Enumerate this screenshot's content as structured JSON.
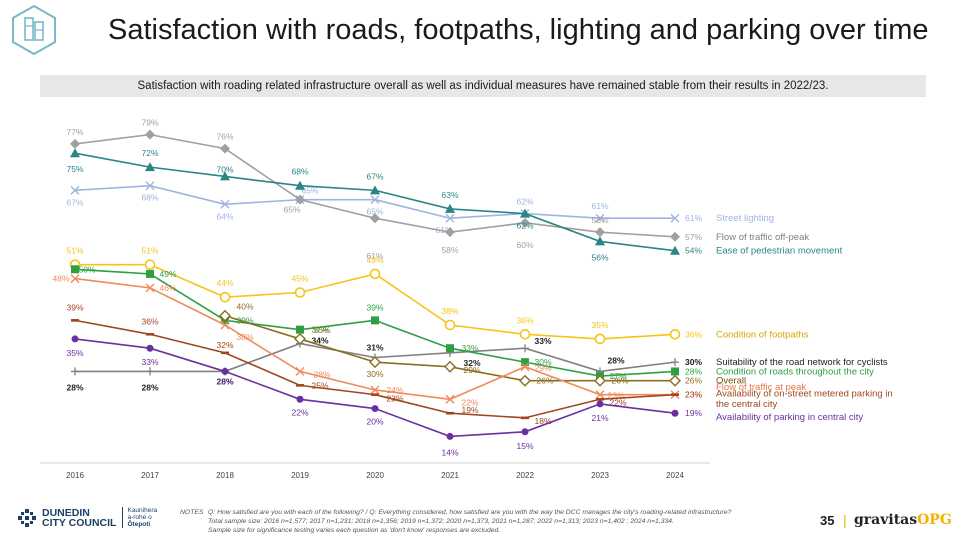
{
  "title": "Satisfaction with roads, footpaths, lighting and parking over time",
  "banner": "Satisfaction with roading related infrastructure overall as well as individual measures have remained stable from their results in 2022/23.",
  "chart_data": {
    "type": "line",
    "x": [
      "2016",
      "2017",
      "2018",
      "2019",
      "2020",
      "2021",
      "2022",
      "2023",
      "2024"
    ],
    "series": [
      {
        "name": "Street lighting",
        "color": "#9fb4e0",
        "marker": "x",
        "values": [
          67,
          68,
          64,
          65,
          65,
          61,
          62,
          61,
          61
        ],
        "labels": [
          "67%",
          "68%",
          "64%",
          "65%",
          "65%",
          "61%",
          "62%",
          "61%",
          "61%"
        ]
      },
      {
        "name": "Flow of traffic off-peak",
        "color": "#a0a0a0",
        "marker": "diamond",
        "values": [
          77,
          79,
          76,
          65,
          61,
          58,
          60,
          58,
          57
        ],
        "labels": [
          "77%",
          "79%",
          "76%",
          "65%",
          "61%",
          "58%",
          "60%",
          "58%",
          "57%"
        ]
      },
      {
        "name": "Ease of pedestrian movement",
        "color": "#2a8585",
        "marker": "triangle",
        "values": [
          75,
          72,
          70,
          68,
          67,
          63,
          62,
          56,
          54
        ],
        "labels": [
          "75%",
          "72%",
          "70%",
          "68%",
          "67%",
          "63%",
          "62%",
          "56%",
          "54%"
        ]
      },
      {
        "name": "Condition of footpaths",
        "color": "#f5c518",
        "marker": "circle-open",
        "values": [
          51,
          51,
          44,
          45,
          49,
          38,
          36,
          35,
          36
        ],
        "labels": [
          "51%",
          "51%",
          "44%",
          "45%",
          "49%",
          "38%",
          "36%",
          "35%",
          "36%"
        ]
      },
      {
        "name": "Suitability of the road network for cyclists",
        "color": "#808080",
        "marker": "plus",
        "values": [
          28,
          28,
          28,
          34,
          31,
          32,
          33,
          28,
          30
        ],
        "labels": [
          "28%",
          "28%",
          "28%",
          "34%",
          "31%",
          "32%",
          "33%",
          "28%",
          "30%"
        ]
      },
      {
        "name": "Condition of roads throughout the city",
        "color": "#2ea043",
        "marker": "square",
        "values": [
          50,
          49,
          39,
          37,
          39,
          33,
          30,
          27,
          28
        ],
        "labels": [
          "50%",
          "49%",
          "39%",
          "37%",
          "39%",
          "33%",
          "30%",
          "27%",
          "28%"
        ]
      },
      {
        "name": "Overall",
        "color": "#8a6d1e",
        "marker": "diamond-open",
        "values": [
          null,
          null,
          40,
          35,
          30,
          29,
          26,
          26,
          26
        ],
        "labels": [
          "",
          "",
          "40%",
          "35%",
          "30%",
          "29%",
          "26%",
          "26%",
          "26%"
        ]
      },
      {
        "name": "Flow of traffic at peak",
        "color": "#f08a5d",
        "marker": "x",
        "values": [
          48,
          46,
          38,
          28,
          24,
          22,
          29,
          23,
          23
        ],
        "labels": [
          "48%",
          "46%",
          "38%",
          "28%",
          "24%",
          "22%",
          "29%",
          "23%",
          "23%"
        ]
      },
      {
        "name": "Availability of on-street metered parking in the central city",
        "color": "#a0461e",
        "marker": "dash",
        "values": [
          39,
          36,
          32,
          25,
          23,
          19,
          18,
          22,
          23
        ],
        "labels": [
          "39%",
          "36%",
          "32%",
          "25%",
          "23%",
          "19%",
          "18%",
          "22%",
          "23%"
        ]
      },
      {
        "name": "Availability of parking in central city",
        "color": "#6a2fa0",
        "marker": "circle",
        "values": [
          35,
          33,
          28,
          22,
          20,
          14,
          15,
          21,
          19
        ],
        "labels": [
          "35%",
          "33%",
          "28%",
          "22%",
          "20%",
          "14%",
          "15%",
          "21%",
          "19%"
        ]
      }
    ],
    "legend_placement": "right"
  },
  "legend_lines": {
    "street_lighting": "Street lighting",
    "off_peak": "Flow of traffic off-peak",
    "pedestrian": "Ease of pedestrian movement",
    "footpaths": "Condition of footpaths",
    "cyclists": "Suitability of the road network for cyclists",
    "roads": "Condition of roads throughout the city",
    "overall": "Overall",
    "peak": "Flow of traffic at peak",
    "metered_1": "Availability of on-street metered parking in",
    "metered_2": "the central city",
    "parking": "Availability of parking in central city"
  },
  "footer": {
    "notes_label": "NOTES",
    "notes_line1": "Q: How satisfied are you with each of the following?  / Q: Everything considered, how satisfied are you with the way the DCC manages the city's roading-related infrastructure?",
    "notes_line2": "Total sample size: 2016 n=1,577; 2017 n=1,231; 2018 n=1,356; 2019 n=1,372; 2020 n=1,373, 2021 n=1,287; 2022 n=1,313; 2023 n=1,402 ; 2024 n=1,334.",
    "notes_line3": "Sample size for significance testing varies each question as 'don't know' responses are excluded.",
    "brand_line1": "DUNEDIN",
    "brand_line2": "CITY COUNCIL",
    "brand_maori_1": "Kaunihera",
    "brand_maori_2": "a-rohe o",
    "brand_maori_3": "Ōtepoti",
    "page_number": "35",
    "separator": "|",
    "gravitas": "gravitas",
    "opg": "OPG"
  }
}
